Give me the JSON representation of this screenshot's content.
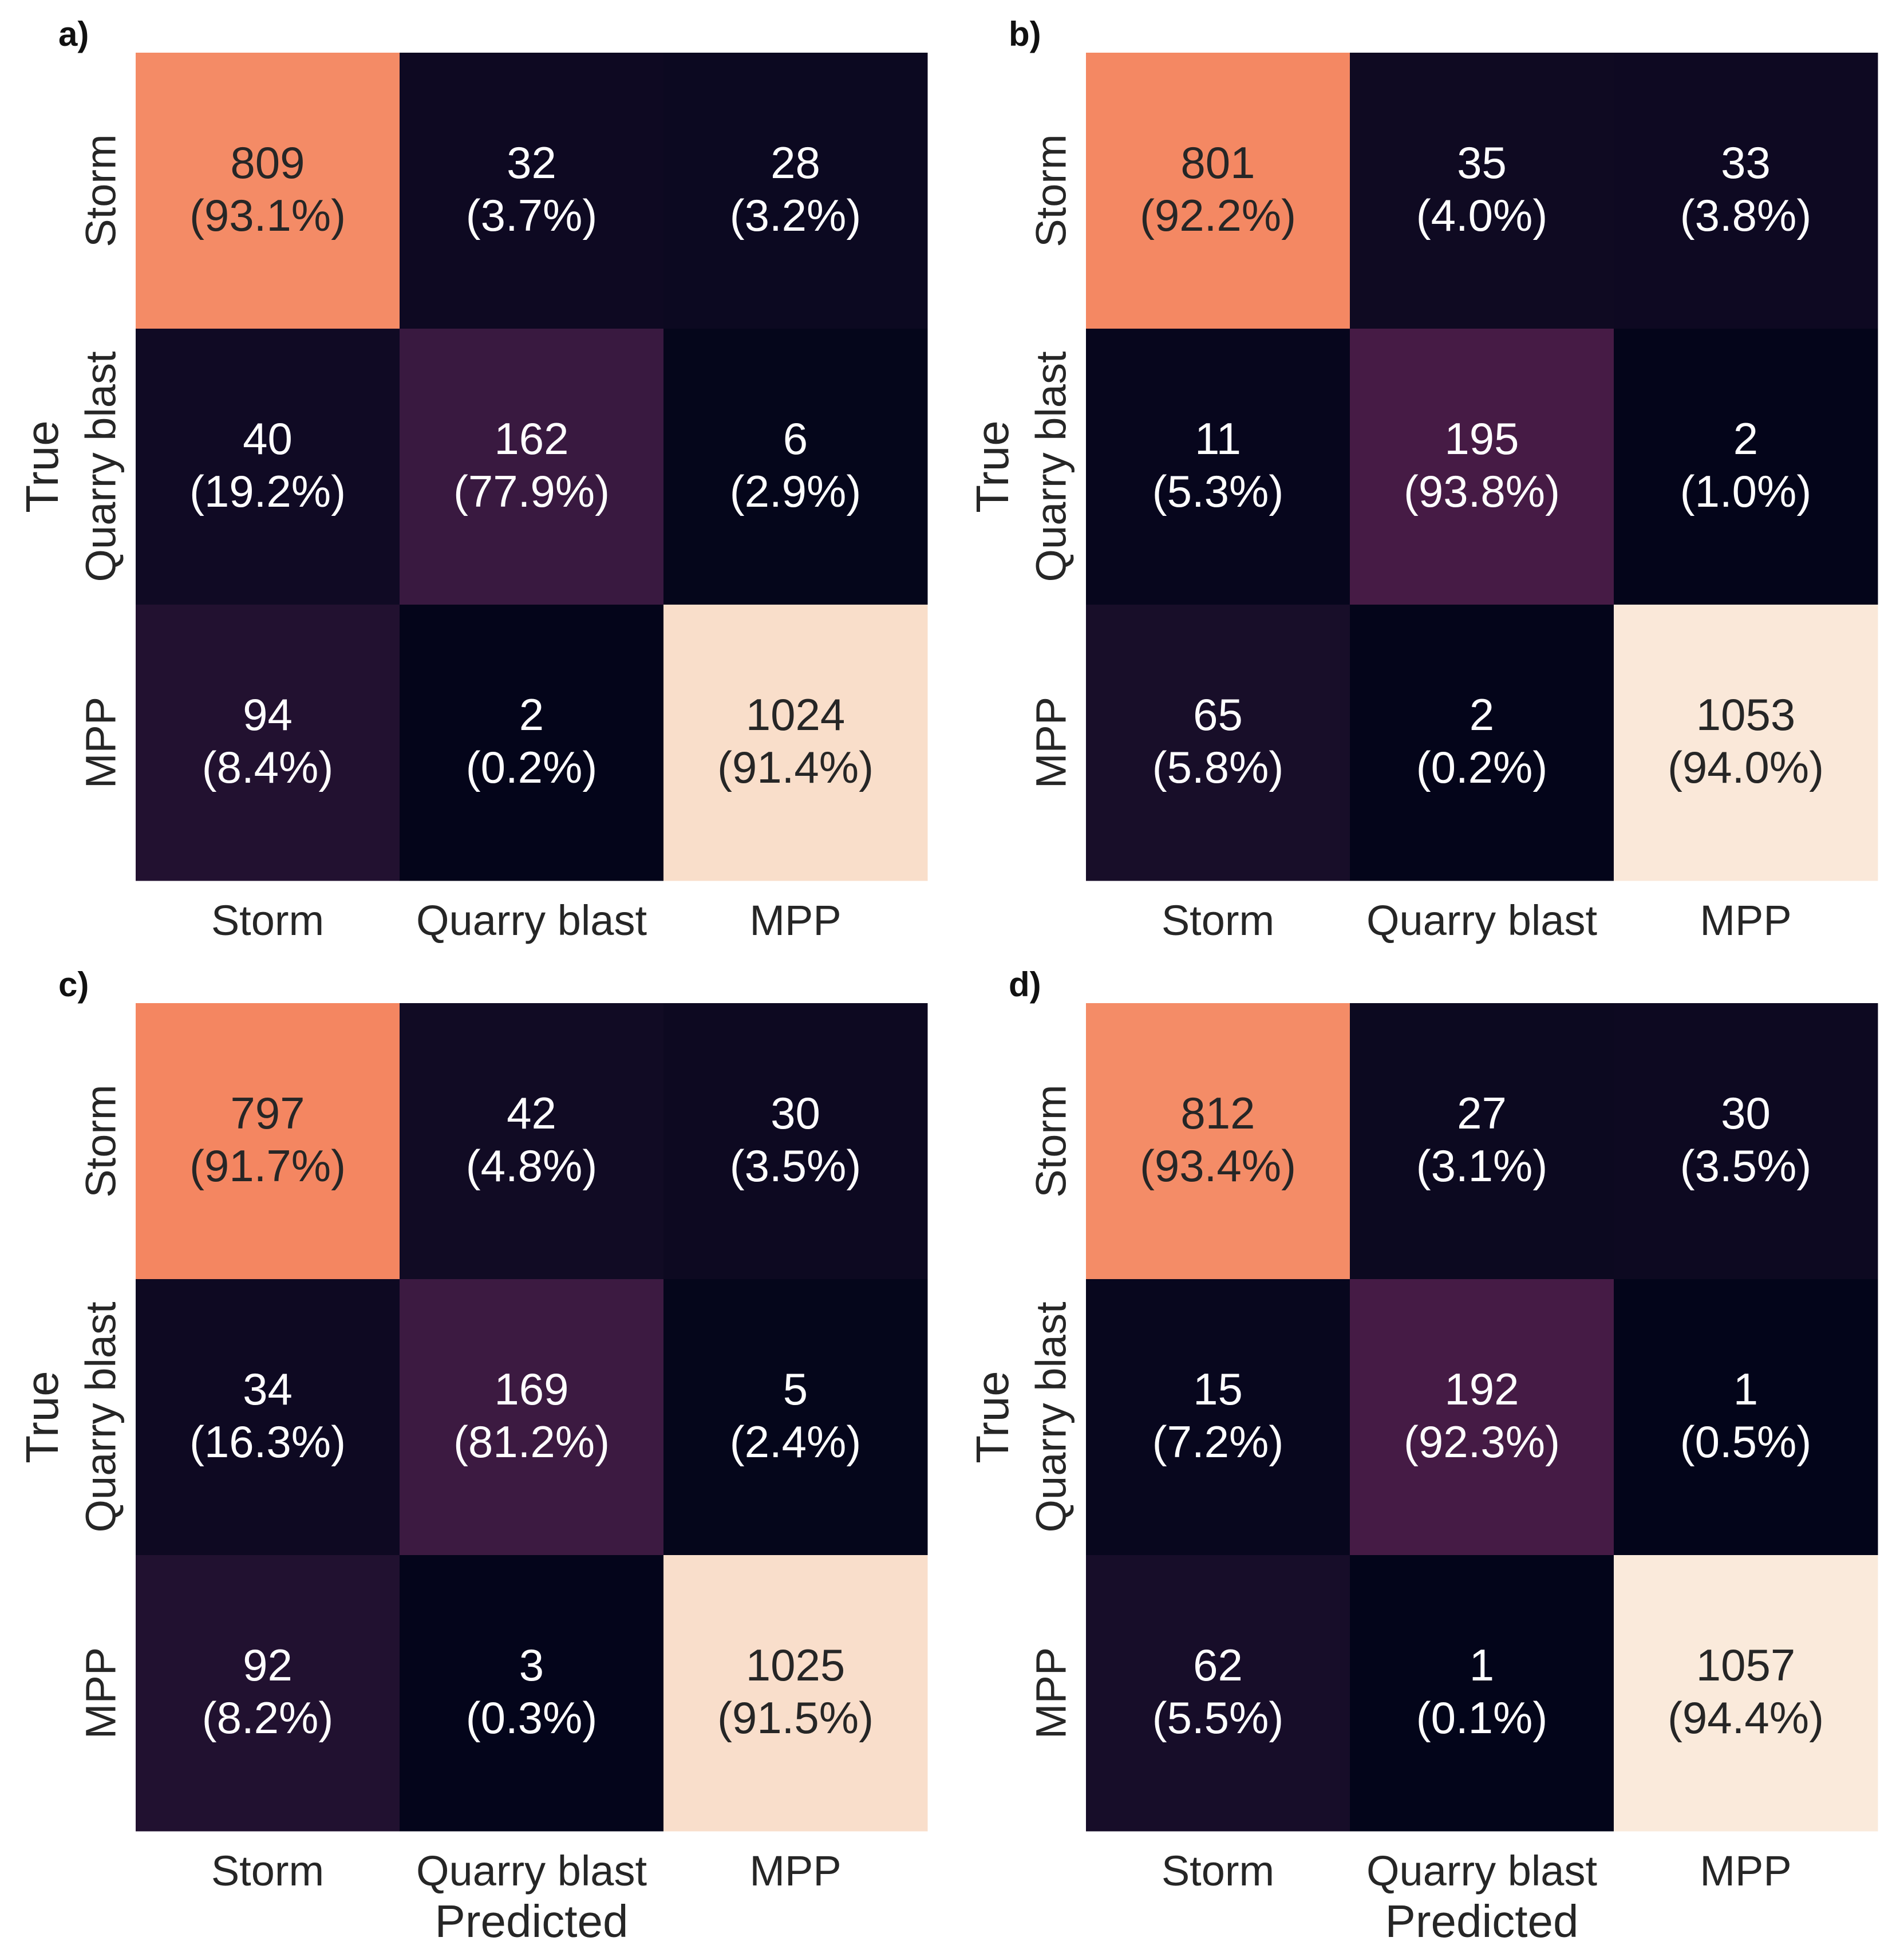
{
  "chart_data": [
    {
      "type": "heatmap",
      "panel_label": "a)",
      "rows": [
        "Storm",
        "Quarry blast",
        "MPP"
      ],
      "columns": [
        "Storm",
        "Quarry blast",
        "MPP"
      ],
      "values": [
        [
          809,
          32,
          28
        ],
        [
          40,
          162,
          6
        ],
        [
          94,
          2,
          1024
        ]
      ],
      "annotations": [
        [
          "(93.1%)",
          "(3.7%)",
          "(3.2%)"
        ],
        [
          "(19.2%)",
          "(77.9%)",
          "(2.9%)"
        ],
        [
          "(8.4%)",
          "(0.2%)",
          "(91.4%)"
        ]
      ],
      "ylabel": "True",
      "xlabel": ""
    },
    {
      "type": "heatmap",
      "panel_label": "b)",
      "rows": [
        "Storm",
        "Quarry blast",
        "MPP"
      ],
      "columns": [
        "Storm",
        "Quarry blast",
        "MPP"
      ],
      "values": [
        [
          801,
          35,
          33
        ],
        [
          11,
          195,
          2
        ],
        [
          65,
          2,
          1053
        ]
      ],
      "annotations": [
        [
          "(92.2%)",
          "(4.0%)",
          "(3.8%)"
        ],
        [
          "(5.3%)",
          "(93.8%)",
          "(1.0%)"
        ],
        [
          "(5.8%)",
          "(0.2%)",
          "(94.0%)"
        ]
      ],
      "ylabel": "True",
      "xlabel": ""
    },
    {
      "type": "heatmap",
      "panel_label": "c)",
      "rows": [
        "Storm",
        "Quarry blast",
        "MPP"
      ],
      "columns": [
        "Storm",
        "Quarry blast",
        "MPP"
      ],
      "values": [
        [
          797,
          42,
          30
        ],
        [
          34,
          169,
          5
        ],
        [
          92,
          3,
          1025
        ]
      ],
      "annotations": [
        [
          "(91.7%)",
          "(4.8%)",
          "(3.5%)"
        ],
        [
          "(16.3%)",
          "(81.2%)",
          "(2.4%)"
        ],
        [
          "(8.2%)",
          "(0.3%)",
          "(91.5%)"
        ]
      ],
      "ylabel": "True",
      "xlabel": "Predicted"
    },
    {
      "type": "heatmap",
      "panel_label": "d)",
      "rows": [
        "Storm",
        "Quarry blast",
        "MPP"
      ],
      "columns": [
        "Storm",
        "Quarry blast",
        "MPP"
      ],
      "values": [
        [
          812,
          27,
          30
        ],
        [
          15,
          192,
          1
        ],
        [
          62,
          1,
          1057
        ]
      ],
      "annotations": [
        [
          "(93.4%)",
          "(3.1%)",
          "(3.5%)"
        ],
        [
          "(7.2%)",
          "(92.3%)",
          "(0.5%)"
        ],
        [
          "(5.5%)",
          "(0.1%)",
          "(94.4%)"
        ]
      ],
      "ylabel": "True",
      "xlabel": "Predicted"
    }
  ],
  "colormap": {
    "name": "rocket",
    "vmin": 0,
    "vmax": 1060,
    "stops": [
      "#03051a",
      "#35193e",
      "#701f57",
      "#ad1759",
      "#e13342",
      "#f37651",
      "#f6b48f",
      "#faebdd"
    ],
    "text_light": "#ffffff",
    "text_dark": "#262626"
  }
}
